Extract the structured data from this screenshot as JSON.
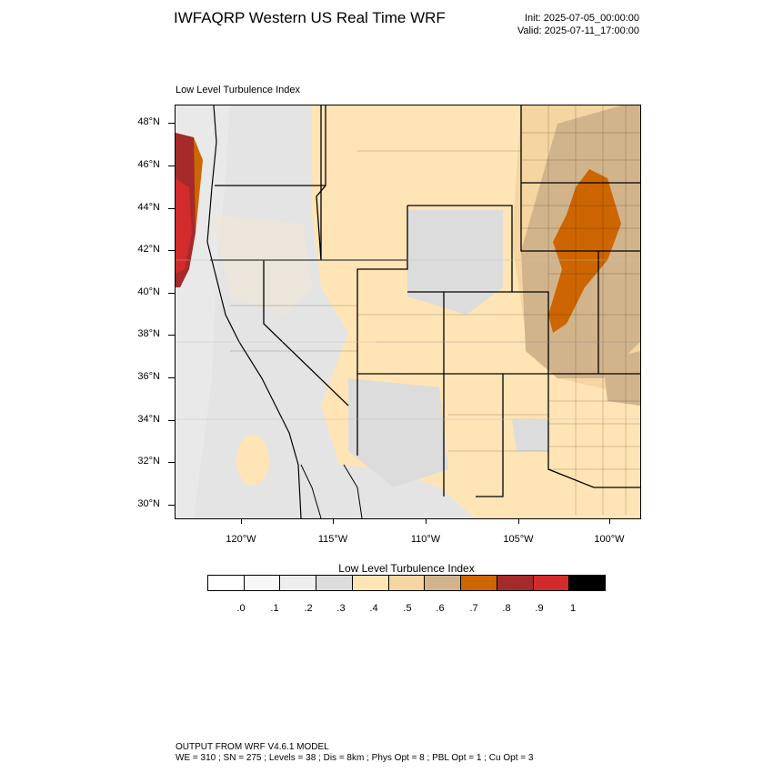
{
  "header": {
    "title": "IWFAQRP Western US Real Time WRF",
    "init": "Init: 2025-07-05_00:00:00",
    "valid": "Valid: 2025-07-11_17:00:00"
  },
  "map": {
    "field_label": "Low Level Turbulence Index",
    "lat_labels": [
      "48°N",
      "46°N",
      "44°N",
      "42°N",
      "40°N",
      "38°N",
      "36°N",
      "34°N",
      "32°N",
      "30°N"
    ],
    "lon_labels": [
      "120°W",
      "115°W",
      "110°W",
      "105°W",
      "100°W"
    ]
  },
  "colorbar": {
    "title": "Low Level Turbulence Index",
    "labels": [
      ".0",
      ".1",
      ".2",
      ".3",
      ".4",
      ".5",
      ".6",
      ".7",
      ".8",
      ".9",
      "1"
    ],
    "colors": [
      "#ffffff",
      "#f7f7f7",
      "#eeeeee",
      "#dcdcdc",
      "#ffe4b5",
      "#f5d5a0",
      "#d2b48c",
      "#cd6600",
      "#a52a2a",
      "#d22b2b",
      "#000000"
    ]
  },
  "footer": {
    "line1": "OUTPUT FROM WRF V4.6.1 MODEL",
    "line2": "WE = 310 ; SN = 275 ; Levels = 38 ; Dis = 8km ; Phys Opt = 8 ; PBL Opt = 1 ; Cu Opt = 3"
  }
}
